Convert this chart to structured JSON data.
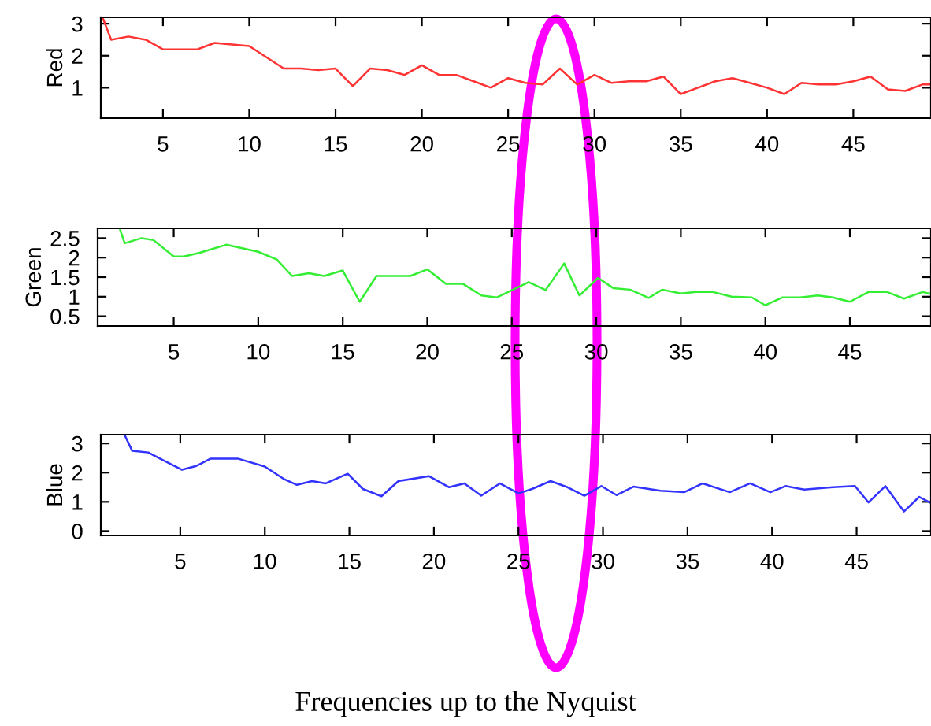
{
  "chart_data": [
    {
      "type": "line",
      "ylabel": "Red",
      "xlim": [
        1.4,
        49.5
      ],
      "ylim": [
        0.05,
        3.2
      ],
      "xticks": [
        5,
        10,
        15,
        20,
        25,
        30,
        35,
        40,
        45
      ],
      "yticks": [
        1,
        2,
        3
      ],
      "grid": false,
      "marker": "none",
      "line_style": "solid",
      "series": [
        {
          "color": "#ff3333",
          "x": [
            1.5,
            2,
            3,
            4,
            5,
            6,
            7,
            8,
            9,
            10,
            11,
            12,
            13,
            14,
            15,
            16,
            17,
            18,
            19,
            20,
            21,
            22,
            23,
            24,
            25,
            26,
            27,
            28,
            29,
            30,
            31,
            32,
            33,
            34,
            35,
            36,
            37,
            38,
            39,
            40,
            41,
            42,
            43,
            44,
            45,
            46,
            47,
            48,
            49,
            49.5
          ],
          "values": [
            3.2,
            2.5,
            2.6,
            2.5,
            2.2,
            2.2,
            2.2,
            2.4,
            2.35,
            2.3,
            1.95,
            1.6,
            1.6,
            1.55,
            1.6,
            1.05,
            1.6,
            1.55,
            1.4,
            1.7,
            1.4,
            1.4,
            1.2,
            1.0,
            1.3,
            1.15,
            1.1,
            1.6,
            1.1,
            1.4,
            1.15,
            1.2,
            1.2,
            1.35,
            0.8,
            1.0,
            1.2,
            1.3,
            1.15,
            1.0,
            0.8,
            1.15,
            1.1,
            1.1,
            1.2,
            1.35,
            0.95,
            0.9,
            1.1,
            1.1
          ]
        }
      ]
    },
    {
      "type": "line",
      "ylabel": "Green",
      "xlim": [
        0.5,
        49.8
      ],
      "ylim": [
        0.25,
        2.75
      ],
      "xticks": [
        5,
        10,
        15,
        20,
        25,
        30,
        35,
        40,
        45
      ],
      "yticks": [
        0.5,
        1,
        1.5,
        2,
        2.5
      ],
      "grid": false,
      "marker": "none",
      "line_style": "solid",
      "series": [
        {
          "color": "#33ee33",
          "x": [
            1.8,
            2.1,
            3.1,
            3.8,
            5.0,
            5.6,
            6.5,
            8.1,
            10.0,
            11.1,
            12.0,
            13.0,
            13.9,
            15.0,
            16.0,
            17.0,
            19.0,
            20.0,
            21.1,
            22.1,
            23.2,
            24.1,
            26.0,
            27.0,
            28.1,
            29.0,
            30.1,
            31.0,
            32.0,
            33.1,
            33.9,
            35.0,
            35.9,
            36.9,
            38.0,
            39.2,
            40.0,
            41.0,
            42.0,
            43.1,
            44.0,
            45.0,
            46.1,
            47.2,
            48.2,
            49.3,
            49.8
          ],
          "values": [
            2.75,
            2.37,
            2.5,
            2.45,
            2.03,
            2.03,
            2.12,
            2.33,
            2.15,
            1.95,
            1.53,
            1.6,
            1.53,
            1.67,
            0.87,
            1.53,
            1.53,
            1.7,
            1.33,
            1.33,
            1.03,
            0.98,
            1.37,
            1.17,
            1.85,
            1.03,
            1.48,
            1.22,
            1.18,
            0.97,
            1.18,
            1.08,
            1.12,
            1.12,
            1.0,
            0.98,
            0.78,
            0.98,
            0.98,
            1.03,
            0.98,
            0.87,
            1.12,
            1.12,
            0.95,
            1.12,
            1.07
          ]
        }
      ]
    },
    {
      "type": "line",
      "ylabel": "Blue",
      "xlim": [
        0.3,
        49.4
      ],
      "ylim": [
        -0.15,
        3.3
      ],
      "xticks": [
        5,
        10,
        15,
        20,
        25,
        30,
        35,
        40,
        45
      ],
      "yticks": [
        0,
        1,
        2,
        3
      ],
      "grid": false,
      "marker": "none",
      "line_style": "solid",
      "annotations": [
        "Frequencies up to the Nyquist"
      ],
      "series": [
        {
          "color": "#3333ff",
          "x": [
            1.7,
            2.15,
            3.1,
            4.0,
            5.1,
            5.95,
            6.8,
            8.4,
            10.0,
            11.1,
            11.9,
            12.8,
            13.6,
            14.9,
            15.8,
            16.9,
            17.9,
            19.7,
            20.9,
            21.8,
            22.8,
            23.9,
            25.0,
            25.8,
            26.9,
            27.9,
            28.9,
            29.9,
            30.8,
            31.8,
            33.4,
            34.8,
            35.9,
            37.5,
            38.7,
            39.9,
            40.8,
            41.9,
            43.6,
            44.9,
            45.7,
            46.7,
            47.8,
            48.7,
            49.4
          ],
          "values": [
            3.3,
            2.75,
            2.69,
            2.42,
            2.1,
            2.23,
            2.48,
            2.48,
            2.21,
            1.79,
            1.58,
            1.71,
            1.63,
            1.96,
            1.44,
            1.19,
            1.71,
            1.88,
            1.5,
            1.63,
            1.21,
            1.63,
            1.29,
            1.44,
            1.71,
            1.5,
            1.21,
            1.54,
            1.23,
            1.52,
            1.38,
            1.33,
            1.63,
            1.33,
            1.63,
            1.33,
            1.54,
            1.42,
            1.5,
            1.54,
            0.98,
            1.54,
            0.67,
            1.17,
            0.96
          ]
        }
      ]
    }
  ]
}
